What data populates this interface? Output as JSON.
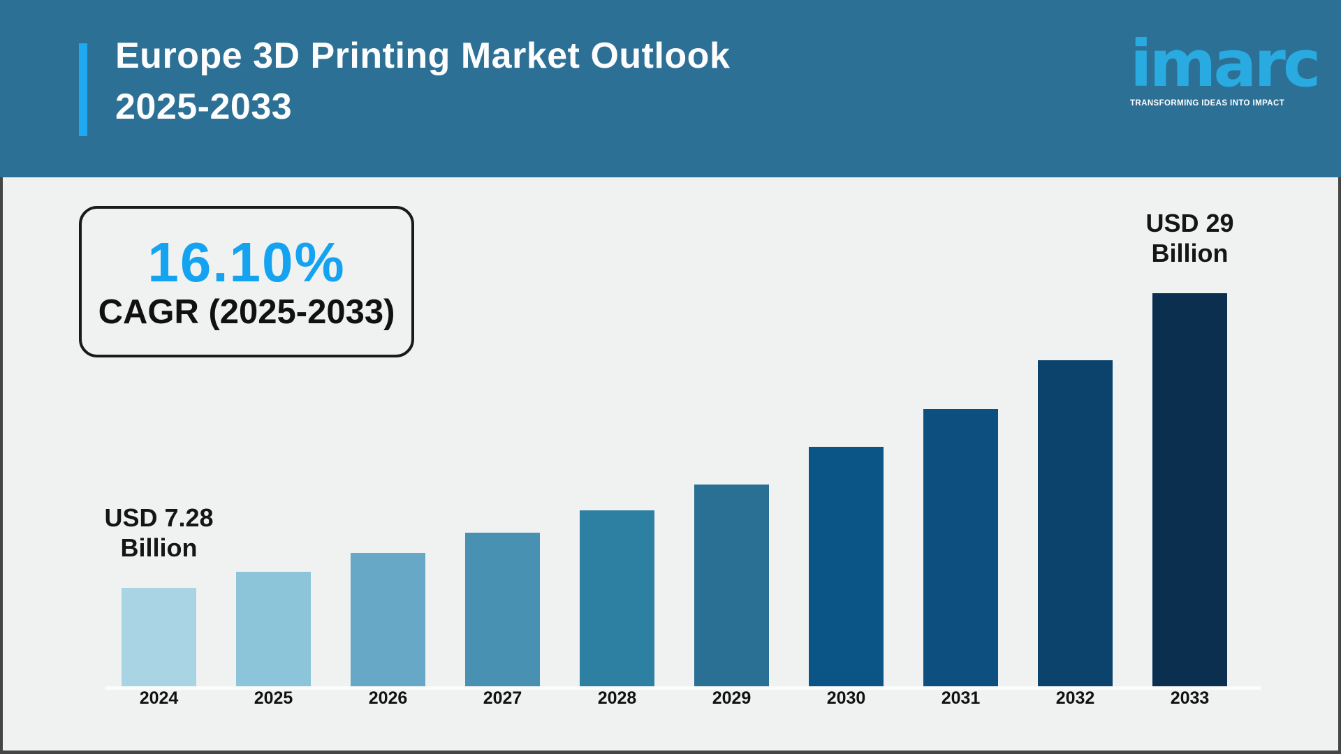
{
  "header": {
    "title_line1": "Europe 3D Printing Market Outlook",
    "title_line2": "2025-2033",
    "logo": {
      "wordmark": "imarc",
      "tagline": "TRANSFORMING IDEAS INTO IMPACT",
      "wordmark_color": "#29abe2"
    }
  },
  "cagr": {
    "value": "16.10%",
    "label": "CAGR (2025-2033)",
    "value_color": "#14a3f0"
  },
  "chart_data": {
    "type": "bar",
    "title": "Europe 3D Printing Market Outlook 2025-2033",
    "unit": "USD Billion",
    "categories": [
      "2024",
      "2025",
      "2026",
      "2027",
      "2028",
      "2029",
      "2030",
      "2031",
      "2032",
      "2033"
    ],
    "values": [
      7.28,
      8.45,
      9.85,
      11.35,
      13.0,
      14.9,
      17.65,
      20.45,
      24.05,
      29
    ],
    "values_note": "only 2024 (7.28) and 2033 (29) are labeled; intermediate values estimated from bar heights",
    "bar_colors": [
      "#a8d4e4",
      "#8cc4da",
      "#66a8c6",
      "#4891b2",
      "#2e80a3",
      "#2a6f94",
      "#0b5486",
      "#0d5080",
      "#0b436c",
      "#0a2f4f"
    ],
    "point_labels": [
      {
        "index": 0,
        "text": "USD 7.28\nBillion"
      },
      {
        "index": 9,
        "text": "USD 29\nBillion"
      }
    ],
    "ylim": [
      0,
      30
    ],
    "grid": false,
    "legend": false,
    "xlabel": "",
    "ylabel": ""
  },
  "colors": {
    "header_bg": "#2d7096",
    "accent_bar": "#1ea9f1",
    "page_bg": "#f0f1f1",
    "frame_border": "#454545",
    "text_dark": "#111111"
  }
}
